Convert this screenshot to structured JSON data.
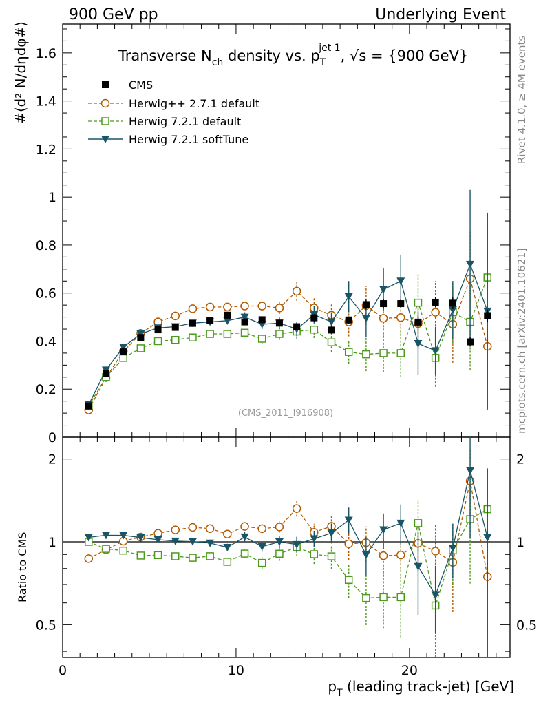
{
  "header": {
    "left": "900 GeV pp",
    "right": "Underlying Event"
  },
  "side_texts": {
    "top": "Rivet 4.1.0, ≥ 4M events",
    "bottom": "mcplots.cern.ch [arXiv:2401.10621]"
  },
  "chart_data": {
    "type": "scatter",
    "title_parts": {
      "a": "Transverse N",
      "b": "ch",
      "c": " density vs. p",
      "d": "T",
      "e": "jet 1",
      "f": ", √s = {900 GeV}"
    },
    "ylabel": "#⟨d² N/dηdφ#⟩",
    "xlabel_parts": {
      "a": "p",
      "b": "T",
      "c": " (leading track-jet) [GeV]"
    },
    "ratio_ylabel": "Ratio to CMS",
    "reference_label": "(CMS_2011_I916908)",
    "xlim": [
      0,
      25.8
    ],
    "ylim": [
      0,
      1.72
    ],
    "ratio_ylim": [
      0.38,
      2.4
    ],
    "x_ticks": [
      0,
      10,
      20
    ],
    "x_tick_labels": [
      "0",
      "10",
      "20"
    ],
    "y_ticks": [
      0,
      0.2,
      0.4,
      0.6,
      0.8,
      1,
      1.2,
      1.4,
      1.6
    ],
    "y_tick_labels": [
      "0",
      "0.2",
      "0.4",
      "0.6",
      "0.8",
      "1",
      "1.2",
      "1.4",
      "1.6"
    ],
    "ratio_ticks": [
      0.5,
      1,
      2
    ],
    "ratio_tick_labels": [
      "0.5",
      "1",
      "2"
    ],
    "x": [
      1.5,
      2.5,
      3.5,
      4.5,
      5.5,
      6.5,
      7.5,
      8.5,
      9.5,
      10.5,
      11.5,
      12.5,
      13.5,
      14.5,
      15.5,
      16.5,
      17.5,
      18.5,
      19.5,
      20.5,
      21.5,
      22.5,
      23.5,
      24.5
    ],
    "series": [
      {
        "name": "CMS",
        "marker": "square-filled",
        "color": "#000000",
        "values": [
          0.13,
          0.265,
          0.355,
          0.415,
          0.447,
          0.457,
          0.474,
          0.485,
          0.508,
          0.48,
          0.489,
          0.475,
          0.46,
          0.497,
          0.446,
          0.488,
          0.552,
          0.556,
          0.556,
          0.479,
          0.562,
          0.558,
          0.397,
          0.506
        ],
        "errors": [
          0.005,
          0.008,
          0.01,
          0.01,
          0.012,
          0.012,
          0.012,
          0.012,
          0.012,
          0.012,
          0.012,
          0.015,
          0.015,
          0.015,
          0.015,
          0.015,
          0.02,
          0.02,
          0.02,
          0.02,
          0.02,
          0.025,
          0.02,
          0.025
        ]
      },
      {
        "name": "Herwig++ 2.7.1 default",
        "marker": "circle-open",
        "color": "#b35900",
        "dash": "5,3",
        "values": [
          0.113,
          0.248,
          0.357,
          0.432,
          0.48,
          0.505,
          0.535,
          0.542,
          0.542,
          0.546,
          0.546,
          0.538,
          0.608,
          0.538,
          0.508,
          0.48,
          0.548,
          0.495,
          0.498,
          0.473,
          0.52,
          0.47,
          0.66,
          0.378
        ],
        "errors": [
          0.004,
          0.005,
          0.006,
          0.007,
          0.008,
          0.01,
          0.01,
          0.012,
          0.012,
          0.015,
          0.02,
          0.025,
          0.04,
          0.04,
          0.05,
          0.06,
          0.08,
          0.08,
          0.09,
          0.1,
          0.13,
          0.16,
          0.2,
          0.15
        ]
      },
      {
        "name": "Herwig 7.2.1 default",
        "marker": "square-open",
        "color": "#4c9a1c",
        "dash": "5,3",
        "values": [
          0.13,
          0.25,
          0.33,
          0.37,
          0.4,
          0.405,
          0.415,
          0.43,
          0.43,
          0.435,
          0.41,
          0.43,
          0.44,
          0.448,
          0.395,
          0.355,
          0.345,
          0.35,
          0.35,
          0.56,
          0.33,
          0.52,
          0.48,
          0.665
        ],
        "errors": [
          0.004,
          0.005,
          0.006,
          0.007,
          0.008,
          0.01,
          0.01,
          0.012,
          0.012,
          0.015,
          0.02,
          0.025,
          0.03,
          0.035,
          0.04,
          0.05,
          0.07,
          0.08,
          0.1,
          0.12,
          0.12,
          0.13,
          0.2,
          0.26
        ]
      },
      {
        "name": "Herwig 7.2.1 softTune",
        "marker": "triangle-down",
        "color": "#1a5566",
        "values": [
          0.135,
          0.28,
          0.375,
          0.43,
          0.455,
          0.46,
          0.475,
          0.48,
          0.485,
          0.5,
          0.47,
          0.475,
          0.45,
          0.51,
          0.48,
          0.585,
          0.495,
          0.615,
          0.65,
          0.39,
          0.36,
          0.53,
          0.72,
          0.525
        ],
        "errors": [
          0.004,
          0.005,
          0.006,
          0.007,
          0.008,
          0.01,
          0.01,
          0.012,
          0.015,
          0.02,
          0.02,
          0.025,
          0.03,
          0.035,
          0.04,
          0.065,
          0.08,
          0.09,
          0.11,
          0.13,
          0.1,
          0.12,
          0.31,
          0.41
        ]
      }
    ]
  }
}
